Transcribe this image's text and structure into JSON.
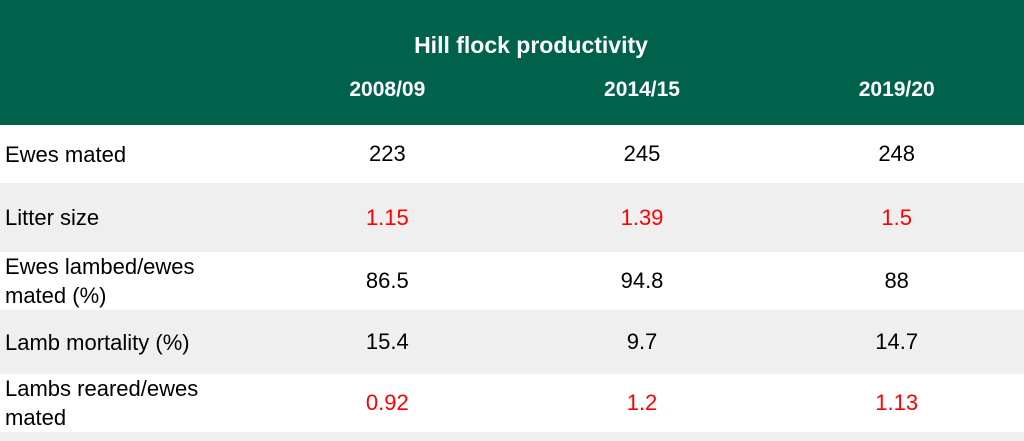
{
  "colors": {
    "header_bg": "#00624a",
    "header_text": "#ffffff",
    "row_bg": "#ffffff",
    "row_alt_bg": "#efefef",
    "text": "#000000",
    "highlight": "#ff0000"
  },
  "chart_data": {
    "type": "table",
    "title": "Hill flock productivity",
    "columns": [
      "2008/09",
      "2014/15",
      "2019/20"
    ],
    "rows": [
      {
        "label": "Ewes mated",
        "values": [
          "223",
          "245",
          "248"
        ],
        "highlighted": false
      },
      {
        "label": "Litter size",
        "values": [
          "1.15",
          "1.39",
          "1.5"
        ],
        "highlighted": true
      },
      {
        "label": "Ewes lambed/ewes mated (%)",
        "values": [
          "86.5",
          "94.8",
          "88"
        ],
        "highlighted": false
      },
      {
        "label": "Lamb mortality (%)",
        "values": [
          "15.4",
          "9.7",
          "14.7"
        ],
        "highlighted": false
      },
      {
        "label": "Lambs reared/ewes mated",
        "values": [
          "0.92",
          "1.2",
          "1.13"
        ],
        "highlighted": true
      }
    ],
    "layout": {
      "highlighted_value_color": "#ff0000",
      "alternating_row_shading": true,
      "header_style": "solid dark green band with white bold text"
    }
  }
}
